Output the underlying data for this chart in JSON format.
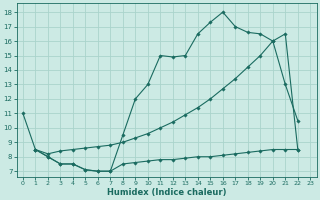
{
  "xlabel": "Humidex (Indice chaleur)",
  "bg_color": "#cceae4",
  "grid_color": "#aad4cc",
  "line_color": "#1a6b60",
  "x_ticks": [
    0,
    1,
    2,
    3,
    4,
    5,
    6,
    7,
    8,
    9,
    10,
    11,
    12,
    13,
    14,
    15,
    16,
    17,
    18,
    19,
    20,
    21,
    22,
    23
  ],
  "y_ticks": [
    7,
    8,
    9,
    10,
    11,
    12,
    13,
    14,
    15,
    16,
    17,
    18
  ],
  "ylim": [
    6.6,
    18.6
  ],
  "xlim": [
    -0.5,
    23.5
  ],
  "series1_x": [
    0,
    1,
    2,
    3,
    4,
    5,
    6,
    7,
    8,
    9,
    10,
    11,
    12,
    13,
    14,
    15,
    16,
    17,
    18,
    19,
    20,
    21,
    22
  ],
  "series1_y": [
    11,
    8.5,
    8.0,
    7.5,
    7.5,
    7.1,
    7.0,
    7.0,
    9.5,
    12.0,
    13.0,
    15.0,
    14.9,
    15.0,
    16.5,
    17.3,
    18.0,
    17.0,
    16.6,
    16.5,
    16.0,
    13.0,
    10.5
  ],
  "series2_x": [
    1,
    2,
    3,
    4,
    5,
    6,
    7,
    8,
    9,
    10,
    11,
    12,
    13,
    14,
    15,
    16,
    17,
    18,
    19,
    20,
    21,
    22
  ],
  "series2_y": [
    8.5,
    8.2,
    8.4,
    8.5,
    8.6,
    8.7,
    8.8,
    9.0,
    9.3,
    9.6,
    10.0,
    10.4,
    10.9,
    11.4,
    12.0,
    12.7,
    13.4,
    14.2,
    15.0,
    16.0,
    16.5,
    8.5
  ],
  "series3_x": [
    1,
    2,
    3,
    4,
    5,
    6,
    7,
    8,
    9,
    10,
    11,
    12,
    13,
    14,
    15,
    16,
    17,
    18,
    19,
    20,
    21,
    22
  ],
  "series3_y": [
    8.5,
    8.0,
    7.5,
    7.5,
    7.1,
    7.0,
    7.0,
    7.5,
    7.6,
    7.7,
    7.8,
    7.8,
    7.9,
    8.0,
    8.0,
    8.1,
    8.2,
    8.3,
    8.4,
    8.5,
    8.5,
    8.5
  ]
}
